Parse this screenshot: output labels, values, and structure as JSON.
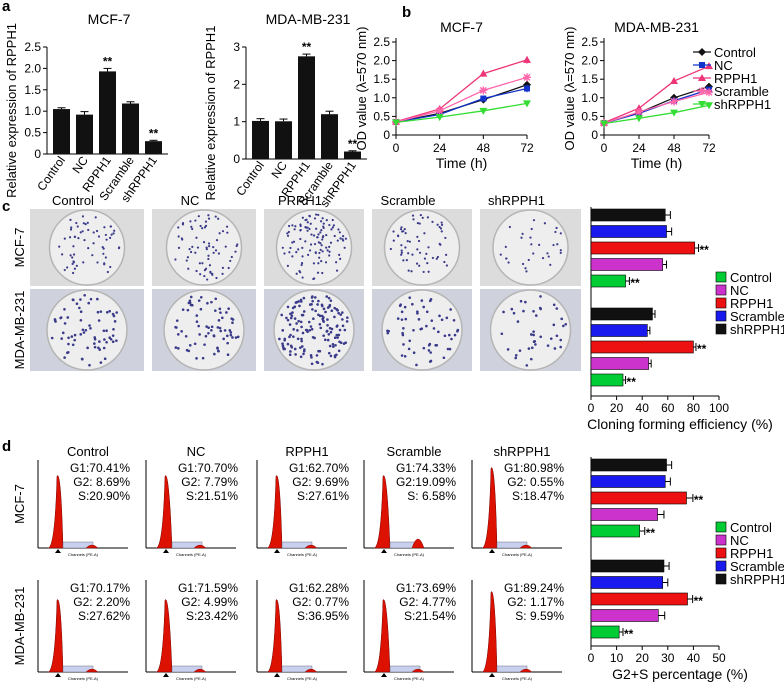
{
  "panel_letters": [
    "a",
    "b",
    "c",
    "d"
  ],
  "colony_groups": [
    "Control",
    "NC",
    "PRRH1",
    "Scramble",
    "shRPPH1"
  ],
  "colony_rows": [
    "MCF-7",
    "MDA-MB-231"
  ],
  "cell_cycle_groups": [
    "Control",
    "NC",
    "RPPH1",
    "Scramble",
    "shRPPH1"
  ],
  "cell_cycle_rows": [
    "MCF-7",
    "MDA-MB-231"
  ],
  "histogram_axis_label": "Channels (PE-A)",
  "cell_cycle_stats": [
    [
      [
        "G1:70.41%",
        "G2:  8.69%",
        "S:20.90%"
      ],
      [
        "G1:70.70%",
        "G2:  7.79%",
        "S:21.51%"
      ],
      [
        "G1:62.70%",
        "G2:  9.69%",
        "S:27.61%"
      ],
      [
        "G1:74.33%",
        "G2:19.09%",
        "S:  6.58%"
      ],
      [
        "G1:80.98%",
        "G2:  0.55%",
        "S:18.47%"
      ]
    ],
    [
      [
        "G1:70.17%",
        "G2:  2.20%",
        "S:27.62%"
      ],
      [
        "G1:71.59%",
        "G2:  4.99%",
        "S:23.42%"
      ],
      [
        "G1:62.28%",
        "G2:  0.77%",
        "S:36.95%"
      ],
      [
        "G1:73.69%",
        "G2:  4.77%",
        "S:21.54%"
      ],
      [
        "G1:89.24%",
        "G2:  1.17%",
        "S:  9.59%"
      ]
    ]
  ],
  "colors": {
    "control": "#00cc33",
    "nc": "#cc33cc",
    "rpph1": "#ee1111",
    "scramble": "#1a1aee",
    "shrpph1": "#111111",
    "b_control": "#111111",
    "b_nc": "#1133cc",
    "b_rpph1": "#ee3377",
    "b_scramble": "#ff66aa",
    "b_shrpph1": "#33dd33",
    "histogram_fill": "#dd1100",
    "plate_bg": "#d8d8d8",
    "dot": "#3a3a8a"
  },
  "chart_data": [
    {
      "id": "a1",
      "type": "bar",
      "title": "MCF-7",
      "ylabel": "Relative expression of RPPH1",
      "categories": [
        "Control",
        "NC",
        "RPPH1",
        "Scramble",
        "shRPPH1"
      ],
      "values": [
        1.05,
        0.92,
        1.93,
        1.18,
        0.3
      ],
      "errors": [
        0.03,
        0.07,
        0.07,
        0.04,
        0.02
      ],
      "annotations": [
        "",
        "",
        "**",
        "",
        "**"
      ],
      "ylim": [
        0,
        2.5
      ],
      "yticks": [
        "0",
        "0.5",
        "1.0",
        "1.5",
        "2.0",
        "2.5"
      ]
    },
    {
      "id": "a2",
      "type": "bar",
      "title": "MDA-MB-231",
      "ylabel": "Relative expression of RPPH1",
      "categories": [
        "Control",
        "NC",
        "RPPH1",
        "Scramble",
        "shRPPH1"
      ],
      "values": [
        1.02,
        1.01,
        2.75,
        1.2,
        0.2
      ],
      "errors": [
        0.06,
        0.06,
        0.06,
        0.08,
        0.02
      ],
      "annotations": [
        "",
        "",
        "**",
        "",
        "**"
      ],
      "ylim": [
        0,
        3
      ],
      "yticks": [
        "0",
        "1",
        "2",
        "3"
      ]
    },
    {
      "id": "b1",
      "type": "line",
      "title": "MCF-7",
      "xlabel": "Time (h)",
      "ylabel": "OD value (λ=570 nm)",
      "x": [
        0,
        24,
        48,
        72
      ],
      "xticks": [
        "0",
        "24",
        "48",
        "72"
      ],
      "ylim": [
        0,
        2.5
      ],
      "yticks": [
        "0",
        "0.5",
        "1.0",
        "1.5",
        "2.0",
        "2.5"
      ],
      "series": [
        {
          "name": "Control",
          "values": [
            0.35,
            0.58,
            0.95,
            1.35
          ],
          "errors": [
            0.03,
            0.04,
            0.06,
            0.1
          ]
        },
        {
          "name": "NC",
          "values": [
            0.35,
            0.55,
            0.98,
            1.25
          ],
          "errors": [
            0.03,
            0.04,
            0.06,
            0.1
          ]
        },
        {
          "name": "RPPH1",
          "values": [
            0.36,
            0.7,
            1.65,
            2.02
          ],
          "errors": [
            0.03,
            0.05,
            0.08,
            0.1
          ]
        },
        {
          "name": "Scramble",
          "values": [
            0.35,
            0.65,
            1.2,
            1.55
          ],
          "errors": [
            0.03,
            0.04,
            0.07,
            0.1
          ]
        },
        {
          "name": "shRPPH1",
          "values": [
            0.34,
            0.48,
            0.65,
            0.85
          ],
          "errors": [
            0.03,
            0.03,
            0.05,
            0.08
          ]
        }
      ]
    },
    {
      "id": "b2",
      "type": "line",
      "title": "MDA-MB-231",
      "xlabel": "Time (h)",
      "ylabel": "OD value (λ=570 nm)",
      "x": [
        0,
        24,
        48,
        72
      ],
      "xticks": [
        "0",
        "24",
        "48",
        "72"
      ],
      "ylim": [
        0,
        2.5
      ],
      "yticks": [
        "0",
        "0.5",
        "1.0",
        "1.5",
        "2.0",
        "2.5"
      ],
      "series": [
        {
          "name": "Control",
          "values": [
            0.32,
            0.6,
            1.0,
            1.3
          ],
          "errors": [
            0.03,
            0.04,
            0.06,
            0.08
          ]
        },
        {
          "name": "NC",
          "values": [
            0.32,
            0.58,
            0.92,
            1.22
          ],
          "errors": [
            0.03,
            0.04,
            0.06,
            0.08
          ]
        },
        {
          "name": "RPPH1",
          "values": [
            0.33,
            0.72,
            1.45,
            1.85
          ],
          "errors": [
            0.03,
            0.05,
            0.07,
            0.08
          ]
        },
        {
          "name": "Scramble",
          "values": [
            0.32,
            0.62,
            0.9,
            1.15
          ],
          "errors": [
            0.03,
            0.04,
            0.06,
            0.08
          ]
        },
        {
          "name": "shRPPH1",
          "values": [
            0.31,
            0.45,
            0.6,
            0.8
          ],
          "errors": [
            0.03,
            0.03,
            0.05,
            0.08
          ]
        }
      ],
      "legend": [
        "Control",
        "NC",
        "RPPH1",
        "Scramble",
        "shRPPH1"
      ]
    },
    {
      "id": "c",
      "type": "bar",
      "orientation": "horizontal",
      "xlabel": "Cloning forming efficiency (%)",
      "xlim": [
        0,
        100
      ],
      "xticks": [
        "0",
        "20",
        "40",
        "60",
        "80",
        "100"
      ],
      "groups": [
        {
          "name": "MCF-7",
          "categories": [
            "shRPPH1",
            "Scramble",
            "RPPH1",
            "NC",
            "Control"
          ],
          "values": [
            58,
            59,
            81,
            56,
            27
          ],
          "errors": [
            4,
            4,
            3,
            3,
            3
          ],
          "annotations": [
            "",
            "",
            "**",
            "",
            "**"
          ]
        },
        {
          "name": "MDA-MB-231",
          "categories": [
            "shRPPH1",
            "Scramble",
            "RPPH1",
            "NC",
            "Control"
          ],
          "values": [
            48,
            44,
            80,
            45,
            25
          ],
          "errors": [
            2,
            2,
            2,
            2,
            2
          ],
          "annotations": [
            "",
            "",
            "**",
            "",
            "**"
          ]
        }
      ],
      "legend": [
        "Control",
        "NC",
        "RPPH1",
        "Scramble",
        "shRPPH1"
      ]
    },
    {
      "id": "d",
      "type": "bar",
      "orientation": "horizontal",
      "xlabel": "G2+S percentage (%)",
      "xlim": [
        0,
        50
      ],
      "xticks": [
        "0",
        "10",
        "20",
        "30",
        "40",
        "50"
      ],
      "groups": [
        {
          "name": "MCF-7",
          "categories": [
            "shRPPH1",
            "Scramble",
            "RPPH1",
            "NC",
            "Control"
          ],
          "values": [
            29.5,
            29,
            37.3,
            26,
            19
          ],
          "errors": [
            2,
            2,
            2.5,
            2.5,
            2
          ],
          "annotations": [
            "",
            "",
            "**",
            "",
            "**"
          ]
        },
        {
          "name": "MDA-MB-231",
          "categories": [
            "shRPPH1",
            "Scramble",
            "RPPH1",
            "NC",
            "Control"
          ],
          "values": [
            28.5,
            28,
            37.7,
            26.3,
            11
          ],
          "errors": [
            2,
            2,
            2,
            2.5,
            1.5
          ],
          "annotations": [
            "",
            "",
            "**",
            "",
            "**"
          ]
        }
      ],
      "legend": [
        "Control",
        "NC",
        "RPPH1",
        "Scramble",
        "shRPPH1"
      ]
    }
  ]
}
